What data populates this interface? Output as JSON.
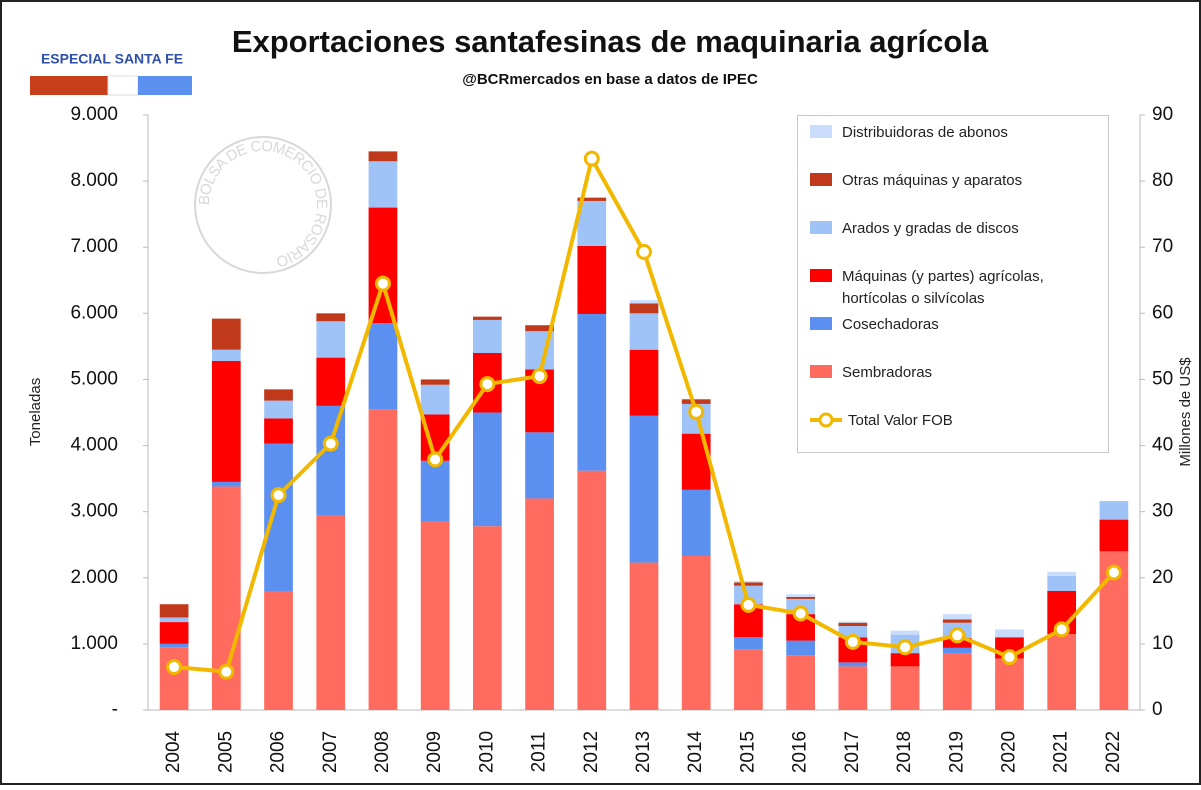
{
  "badge": "ESPECIAL SANTA FE",
  "watermark": "BOLSA DE COMERCIO DE ROSARIO",
  "chart_data": {
    "type": "bar",
    "title": "Exportaciones santafesinas de maquinaria agrícola",
    "subtitle": "@BCRmercados en base a datos de IPEC",
    "y_label": "Toneladas",
    "y2_label": "Millones de US$",
    "categories": [
      "2004",
      "2005",
      "2006",
      "2007",
      "2008",
      "2009",
      "2010",
      "2011",
      "2012",
      "2013",
      "2014",
      "2015",
      "2016",
      "2017",
      "2018",
      "2019",
      "2020",
      "2021",
      "2022"
    ],
    "series": [
      {
        "name": "Sembradoras",
        "color": "#ff6b5e",
        "values": [
          950,
          3380,
          1800,
          2950,
          4550,
          2850,
          2780,
          3200,
          3620,
          2230,
          2330,
          920,
          830,
          660,
          660,
          860,
          780,
          1150,
          2400
        ]
      },
      {
        "name": "Cosechadoras",
        "color": "#5b8ff0",
        "values": [
          50,
          70,
          2230,
          1650,
          1300,
          920,
          1720,
          1000,
          2370,
          2220,
          1000,
          180,
          220,
          60,
          0,
          80,
          0,
          0,
          0
        ]
      },
      {
        "name": "Máquinas (y partes) agrícolas, hortícolas o silvícolas",
        "color": "#ff0000",
        "values": [
          330,
          1830,
          380,
          730,
          1750,
          700,
          900,
          950,
          1030,
          1000,
          850,
          500,
          400,
          380,
          200,
          150,
          320,
          650,
          480
        ]
      },
      {
        "name": "Arados y gradas de discos",
        "color": "#9fc3f7",
        "values": [
          70,
          170,
          270,
          550,
          700,
          450,
          500,
          580,
          680,
          550,
          450,
          280,
          230,
          170,
          280,
          230,
          0,
          230,
          280
        ]
      },
      {
        "name": "Otras máquinas y aparatos",
        "color": "#c0391b",
        "values": [
          200,
          470,
          170,
          120,
          150,
          80,
          50,
          90,
          50,
          150,
          70,
          50,
          30,
          50,
          0,
          50,
          0,
          0,
          0
        ]
      },
      {
        "name": "Distribuidoras de abonos",
        "color": "#c9dcfb",
        "values": [
          0,
          0,
          0,
          0,
          0,
          0,
          0,
          0,
          0,
          50,
          0,
          20,
          40,
          20,
          60,
          80,
          120,
          60,
          0
        ]
      },
      {
        "name": "Total Valor FOB",
        "type": "line",
        "axis": "y2",
        "color": "#f2b800",
        "values": [
          6.5,
          5.8,
          32.5,
          40.3,
          64.5,
          37.9,
          49.3,
          50.5,
          83.4,
          69.3,
          45.1,
          15.9,
          14.6,
          10.3,
          9.5,
          11.3,
          8.0,
          12.2,
          20.8
        ]
      }
    ],
    "ylim": [
      0,
      9000
    ],
    "yticks": [
      {
        "value": 0,
        "label": "-"
      },
      {
        "value": 1000,
        "label": "1.000"
      },
      {
        "value": 2000,
        "label": "2.000"
      },
      {
        "value": 3000,
        "label": "3.000"
      },
      {
        "value": 4000,
        "label": "4.000"
      },
      {
        "value": 5000,
        "label": "5.000"
      },
      {
        "value": 6000,
        "label": "6.000"
      },
      {
        "value": 7000,
        "label": "7.000"
      },
      {
        "value": 8000,
        "label": "8.000"
      },
      {
        "value": 9000,
        "label": "9.000"
      }
    ],
    "y2lim": [
      0,
      90
    ],
    "y2ticks": [
      0,
      10,
      20,
      30,
      40,
      50,
      60,
      70,
      80,
      90
    ],
    "legend": "upper right"
  }
}
